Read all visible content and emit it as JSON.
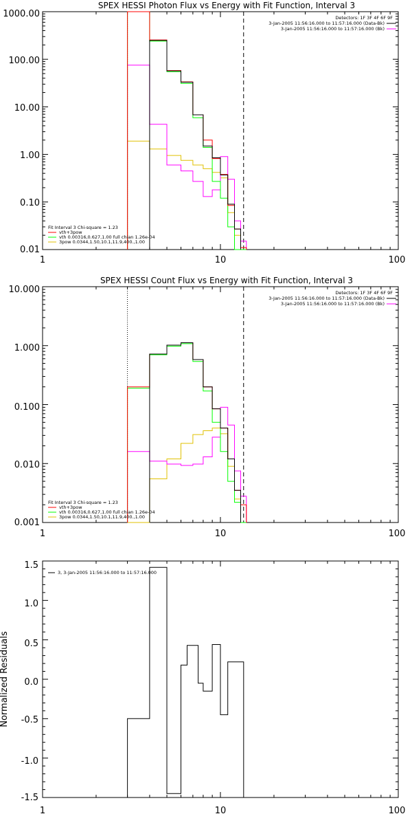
{
  "colors": {
    "data_bk": "#000000",
    "total": "#ff0000",
    "vth": "#00ff00",
    "bpow": "#e0c000",
    "background": "#ff00ff"
  },
  "chart_data": [
    {
      "type": "line",
      "title": "SPEX HESSI Photon Flux vs Energy with Fit Function, Interval 3",
      "xlabel": "",
      "ylabel": "",
      "xscale": "log",
      "yscale": "log",
      "xlim": [
        1,
        100
      ],
      "ylim": [
        0.01,
        1000
      ],
      "x_tick_labels": [
        "1",
        "10",
        "100"
      ],
      "y_tick_labels": [
        "0.01",
        "0.10",
        "1.00",
        "10.00",
        "100.00",
        "1000.00"
      ],
      "vlines": [
        {
          "x": 3,
          "style": "dotted"
        },
        {
          "x": 13.5,
          "style": "dashed"
        }
      ],
      "legend_top": [
        {
          "text": "Detectors: 1F 3F 4F 6F 9F",
          "color": "#000000"
        },
        {
          "text": "3-Jan-2005 11:56:16.000 to 11:57:16.000 (Data-Bk)",
          "color": "#000000"
        },
        {
          "text": "3-Jan-2005 11:56:16.000 to 11:57:16.000 (Bk)",
          "color": "#ff00ff"
        }
      ],
      "legend_bottom": [
        {
          "text": "Fit Interval 3    Chi-square = 1.23",
          "color": "#000000"
        },
        {
          "text": "vth+3pow",
          "color": "#ff0000"
        },
        {
          "text": "vth 0.00316,0.627,1.00   full chian 1.26e-04",
          "color": "#00ff00"
        },
        {
          "text": "3pow 0.0344,1.50,10.1,11.9,400.,1.00",
          "color": "#e0c000"
        }
      ],
      "edges": [
        3,
        4,
        5,
        6,
        7,
        8,
        9,
        10,
        11,
        12,
        13,
        14
      ],
      "series": [
        {
          "key": "data",
          "values": [
            null,
            250,
            57,
            33,
            6.8,
            1.5,
            0.85,
            0.37,
            0.09,
            0.027,
            null
          ]
        },
        {
          "key": "total",
          "values": [
            1000,
            255,
            58,
            33.5,
            6.8,
            2.0,
            0.82,
            0.38,
            0.085,
            0.027,
            0.011
          ]
        },
        {
          "key": "vth",
          "values": [
            1000,
            240,
            55,
            31,
            5.9,
            1.4,
            0.27,
            0.12,
            0.03,
            0.01,
            0.005
          ]
        },
        {
          "key": "bpow",
          "values": [
            1.9,
            1.3,
            0.95,
            0.75,
            0.6,
            0.5,
            0.42,
            0.32,
            0.06,
            0.02,
            0.01
          ]
        },
        {
          "key": "background",
          "values": [
            75,
            4.3,
            0.6,
            0.45,
            0.27,
            0.13,
            0.18,
            0.9,
            0.3,
            0.04,
            0.015
          ]
        }
      ]
    },
    {
      "type": "line",
      "title": "SPEX HESSI Count Flux vs Energy with Fit Function, Interval 3",
      "xlabel": "",
      "ylabel": "",
      "xscale": "log",
      "yscale": "log",
      "xlim": [
        1,
        100
      ],
      "ylim": [
        0.001,
        10
      ],
      "x_tick_labels": [
        "1",
        "10",
        "100"
      ],
      "y_tick_labels": [
        "0.001",
        "0.010",
        "0.100",
        "1.000",
        "10.000"
      ],
      "vlines": [
        {
          "x": 3,
          "style": "dotted"
        },
        {
          "x": 13.5,
          "style": "dashed"
        }
      ],
      "legend_top": [
        {
          "text": "Detectors: 1F 3F 4F 6F 9F",
          "color": "#000000"
        },
        {
          "text": "3-Jan-2005 11:56:16.000 to 11:57:16.000 (Data-Bk)",
          "color": "#000000"
        },
        {
          "text": "3-Jan-2005 11:56:16.000 to 11:57:16.000 (Bk)",
          "color": "#ff00ff"
        }
      ],
      "legend_bottom": [
        {
          "text": "Fit Interval 3    Chi-square = 1.23",
          "color": "#000000"
        },
        {
          "text": "vth+3pow",
          "color": "#ff0000"
        },
        {
          "text": "vth 0.00316,0.627,1.00   full chian 1.26e-04",
          "color": "#00ff00"
        },
        {
          "text": "3pow 0.0344,1.50,10.1,11.9,400.,1.00",
          "color": "#e0c000"
        }
      ],
      "edges": [
        3,
        4,
        5,
        6,
        7,
        8,
        9,
        10,
        11,
        12,
        13,
        14
      ],
      "series": [
        {
          "key": "data",
          "values": [
            null,
            0.72,
            1.02,
            1.12,
            0.58,
            0.2,
            0.085,
            0.04,
            0.012,
            0.0035,
            null
          ]
        },
        {
          "key": "total",
          "values": [
            0.2,
            0.72,
            1.02,
            1.12,
            0.58,
            0.2,
            0.085,
            0.04,
            0.012,
            0.0035,
            0.002
          ]
        },
        {
          "key": "vth",
          "values": [
            0.19,
            0.7,
            0.98,
            1.08,
            0.54,
            0.17,
            0.05,
            0.016,
            0.005,
            0.0022,
            0.001
          ]
        },
        {
          "key": "bpow",
          "values": [
            0.001,
            0.0055,
            0.012,
            0.022,
            0.031,
            0.036,
            0.04,
            0.032,
            0.009,
            0.0025,
            0.001
          ]
        },
        {
          "key": "background",
          "values": [
            0.016,
            0.011,
            0.0098,
            0.0093,
            0.0098,
            0.013,
            0.028,
            0.09,
            0.045,
            0.0075,
            0.0028
          ]
        }
      ]
    },
    {
      "type": "line",
      "title": "",
      "xlabel": "",
      "ylabel": "Normalized Residuals",
      "xscale": "log",
      "yscale": "linear",
      "xlim": [
        1,
        100
      ],
      "ylim": [
        -1.5,
        1.5
      ],
      "x_tick_labels": [
        "1",
        "10",
        "100"
      ],
      "y_tick_labels": [
        "-1.5",
        "-1.0",
        "-0.5",
        "0.0",
        "0.5",
        "1.0",
        "1.5"
      ],
      "legend": [
        {
          "text": "3, 3-Jan-2005 11:56:16.000 to 11:57:16.000",
          "color": "#000000"
        }
      ],
      "edges": [
        3,
        4,
        4.5,
        5,
        6,
        6.5,
        7,
        7.5,
        8,
        9,
        10,
        11,
        12,
        13.5
      ],
      "series": [
        {
          "key": "residuals",
          "values": [
            -0.5,
            1.42,
            1.42,
            -1.45,
            0.18,
            0.43,
            0.43,
            -0.05,
            -0.15,
            0.44,
            -0.45,
            0.22,
            0.22
          ]
        }
      ]
    }
  ]
}
